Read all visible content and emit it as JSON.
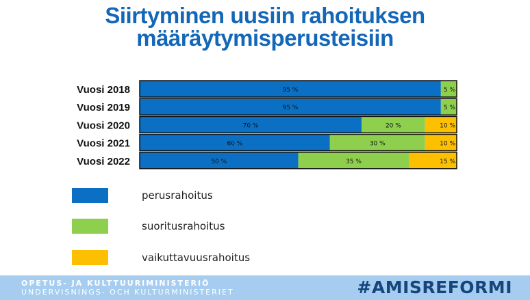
{
  "title": {
    "line1": "Siirtyminen uusiin rahoituksen",
    "line2": "määräytymisperusteisiin"
  },
  "chart_data": {
    "type": "bar",
    "orientation": "horizontal",
    "stacked": true,
    "categories": [
      "Vuosi 2018",
      "Vuosi 2019",
      "Vuosi 2020",
      "Vuosi 2021",
      "Vuosi 2022"
    ],
    "series": [
      {
        "name": "perusrahoitus",
        "values": [
          95,
          95,
          70,
          60,
          50
        ],
        "color": "#0b70c4",
        "labels": [
          "95 %",
          "95 %",
          "70 %",
          "60 %",
          "50 %"
        ]
      },
      {
        "name": "suoritusrahoitus",
        "values": [
          5,
          5,
          20,
          30,
          35
        ],
        "color": "#8fcf4e",
        "labels": [
          "5 %",
          "5 %",
          "20 %",
          "30 %",
          "35 %"
        ]
      },
      {
        "name": "vaikuttavuusrahoitus",
        "values": [
          0,
          0,
          10,
          10,
          15
        ],
        "color": "#fdc000",
        "labels": [
          "",
          "",
          "10 %",
          "10 %",
          "15 %"
        ]
      }
    ],
    "xlim": [
      0,
      100
    ],
    "grid": false,
    "legend": "bottom-left"
  },
  "footer": {
    "line1": "OPETUS- JA KULTTUURIMINISTERIÖ",
    "line2": "UNDERVISNINGS- OCH KULTURMINISTERIET",
    "hashtag": "#AMISREFORMI"
  }
}
